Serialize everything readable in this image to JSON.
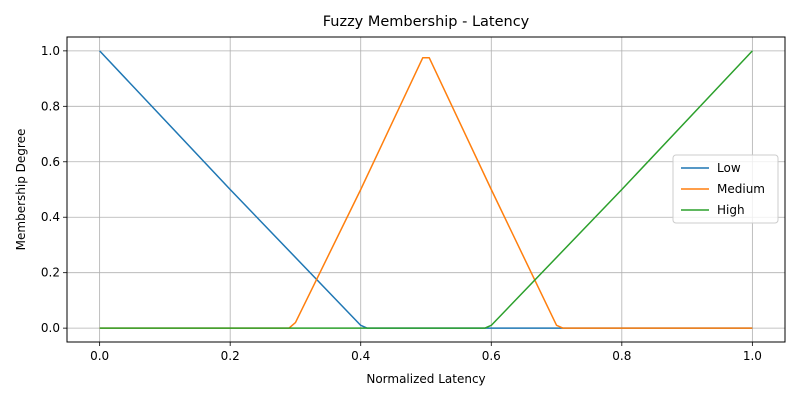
{
  "chart_data": {
    "type": "line",
    "title": "Fuzzy Membership - Latency",
    "xlabel": "Normalized Latency",
    "ylabel": "Membership Degree",
    "xlim": [
      -0.05,
      1.05
    ],
    "ylim": [
      -0.05,
      1.05
    ],
    "xticks": [
      0.0,
      0.2,
      0.4,
      0.6,
      0.8,
      1.0
    ],
    "xtick_labels": [
      "0.0",
      "0.2",
      "0.4",
      "0.6",
      "0.8",
      "1.0"
    ],
    "yticks": [
      0.0,
      0.2,
      0.4,
      0.6,
      0.8,
      1.0
    ],
    "ytick_labels": [
      "0.0",
      "0.2",
      "0.4",
      "0.6",
      "0.8",
      "1.0"
    ],
    "grid": true,
    "legend": "center-right",
    "series": [
      {
        "name": "Low",
        "color": "#1f77b4",
        "x": [
          0.0,
          0.2,
          0.4,
          0.41,
          1.0
        ],
        "y": [
          1.0,
          0.5,
          0.01,
          0.0,
          0.0
        ]
      },
      {
        "name": "Medium",
        "color": "#ff7f0e",
        "x": [
          0.0,
          0.29,
          0.3,
          0.4,
          0.495,
          0.505,
          0.6,
          0.7,
          0.71,
          1.0
        ],
        "y": [
          0.0,
          0.0,
          0.02,
          0.5,
          0.975,
          0.975,
          0.5,
          0.01,
          0.0,
          0.0
        ]
      },
      {
        "name": "High",
        "color": "#2ca02c",
        "x": [
          0.0,
          0.59,
          0.6,
          0.8,
          1.0
        ],
        "y": [
          0.0,
          0.0,
          0.01,
          0.5,
          1.0
        ]
      }
    ]
  }
}
